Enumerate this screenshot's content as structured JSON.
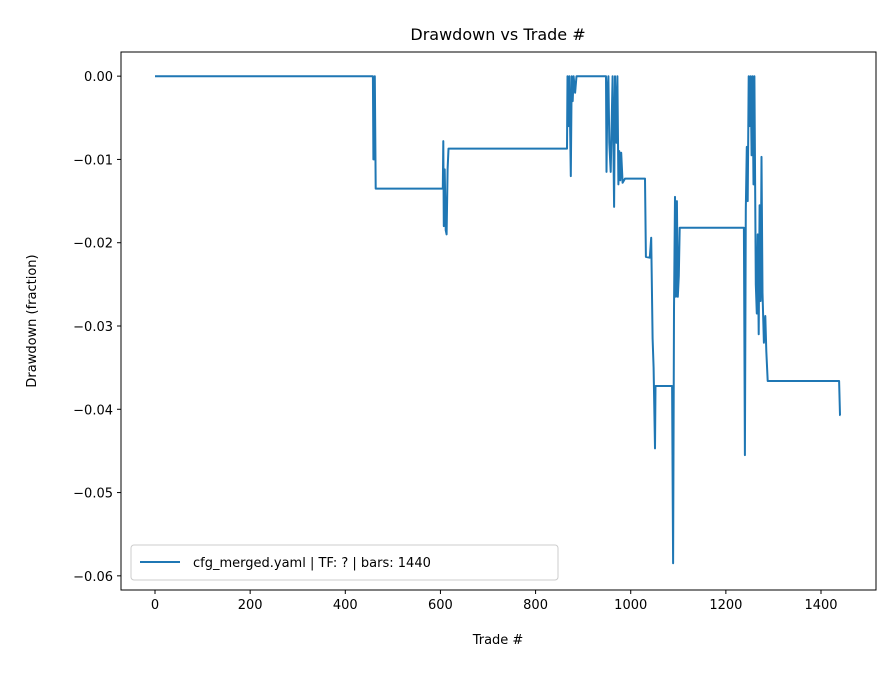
{
  "chart_data": {
    "type": "line",
    "title": "Drawdown vs Trade #",
    "xlabel": "Trade #",
    "ylabel": "Drawdown (fraction)",
    "xlim": [
      -71.5,
      1515.6
    ],
    "ylim": [
      -0.0617,
      0.0029
    ],
    "xticks": [
      0,
      200,
      400,
      600,
      800,
      1000,
      1200,
      1400
    ],
    "xtick_labels": [
      "0",
      "200",
      "400",
      "600",
      "800",
      "1000",
      "1200",
      "1400"
    ],
    "yticks": [
      0.0,
      -0.01,
      -0.02,
      -0.03,
      -0.04,
      -0.05,
      -0.06
    ],
    "ytick_labels": [
      "0.00",
      "−0.01",
      "−0.02",
      "−0.03",
      "−0.04",
      "−0.05",
      "−0.06"
    ],
    "grid": false,
    "legend_position": "lower-left",
    "series": [
      {
        "name": "cfg_merged.yaml | TF: ? | bars: 1440",
        "color": "#1f77b4",
        "points": [
          [
            0,
            0
          ],
          [
            458,
            0
          ],
          [
            459,
            -0.01
          ],
          [
            460,
            -0.006
          ],
          [
            461,
            -0.01
          ],
          [
            462,
            0
          ],
          [
            464,
            -0.0135
          ],
          [
            605,
            -0.0135
          ],
          [
            606,
            -0.0078
          ],
          [
            607,
            -0.018
          ],
          [
            609,
            -0.0112
          ],
          [
            611,
            -0.0185
          ],
          [
            613,
            -0.019
          ],
          [
            615,
            -0.0112
          ],
          [
            617,
            -0.0087
          ],
          [
            866,
            -0.0087
          ],
          [
            867,
            0
          ],
          [
            869,
            -0.006
          ],
          [
            871,
            0
          ],
          [
            874,
            -0.012
          ],
          [
            876,
            0
          ],
          [
            878,
            -0.003
          ],
          [
            880,
            0
          ],
          [
            883,
            -0.002
          ],
          [
            886,
            0
          ],
          [
            948,
            0
          ],
          [
            949,
            -0.0115
          ],
          [
            951,
            -0.002
          ],
          [
            953,
            0
          ],
          [
            955,
            -0.008
          ],
          [
            958,
            -0.0115
          ],
          [
            962,
            0
          ],
          [
            965,
            -0.0157
          ],
          [
            967,
            0
          ],
          [
            970,
            -0.008
          ],
          [
            972,
            0
          ],
          [
            974,
            -0.013
          ],
          [
            976,
            -0.009
          ],
          [
            978,
            -0.0125
          ],
          [
            980,
            -0.0092
          ],
          [
            983,
            -0.0128
          ],
          [
            988,
            -0.0123
          ],
          [
            1030,
            -0.0123
          ],
          [
            1032,
            -0.0217
          ],
          [
            1040,
            -0.0218
          ],
          [
            1043,
            -0.0194
          ],
          [
            1046,
            -0.0315
          ],
          [
            1048,
            -0.035
          ],
          [
            1051,
            -0.0447
          ],
          [
            1052,
            -0.0372
          ],
          [
            1087,
            -0.0372
          ],
          [
            1089,
            -0.0585
          ],
          [
            1091,
            -0.028
          ],
          [
            1093,
            -0.0145
          ],
          [
            1095,
            -0.0265
          ],
          [
            1097,
            -0.015
          ],
          [
            1099,
            -0.0265
          ],
          [
            1101,
            -0.024
          ],
          [
            1103,
            -0.0182
          ],
          [
            1238,
            -0.0182
          ],
          [
            1240,
            -0.0455
          ],
          [
            1242,
            -0.016
          ],
          [
            1244,
            -0.0085
          ],
          [
            1246,
            -0.015
          ],
          [
            1248,
            0
          ],
          [
            1250,
            -0.006
          ],
          [
            1252,
            0
          ],
          [
            1254,
            -0.0095
          ],
          [
            1256,
            0
          ],
          [
            1258,
            -0.013
          ],
          [
            1260,
            0
          ],
          [
            1263,
            -0.025
          ],
          [
            1265,
            -0.0285
          ],
          [
            1267,
            -0.019
          ],
          [
            1269,
            -0.031
          ],
          [
            1271,
            -0.0155
          ],
          [
            1273,
            -0.027
          ],
          [
            1275,
            -0.0097
          ],
          [
            1277,
            -0.026
          ],
          [
            1280,
            -0.032
          ],
          [
            1283,
            -0.0288
          ],
          [
            1285,
            -0.033
          ],
          [
            1288,
            -0.0366
          ],
          [
            1438,
            -0.0366
          ],
          [
            1440,
            -0.0407
          ],
          [
            1441,
            -0.0407
          ]
        ]
      }
    ]
  }
}
